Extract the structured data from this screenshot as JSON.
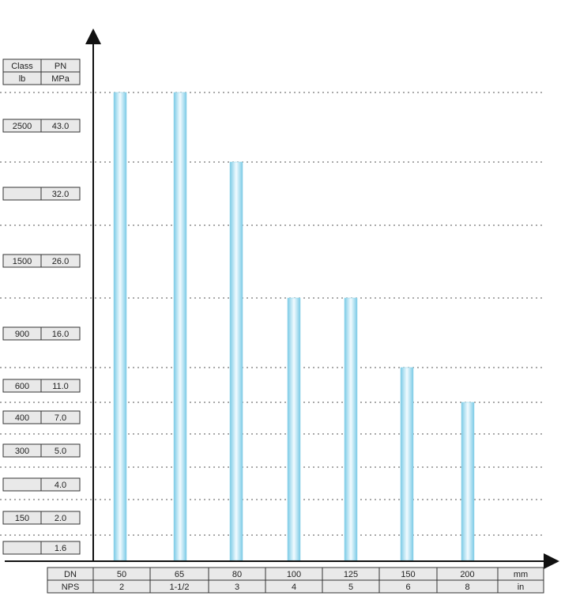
{
  "chart_data": {
    "type": "bar",
    "pressure_table": {
      "header": {
        "class_label": "Class",
        "pn_label": "PN",
        "class_unit": "lb",
        "pn_unit": "MPa"
      },
      "levels": [
        {
          "class": "2500",
          "pn": "43.0"
        },
        {
          "class": "",
          "pn": "32.0"
        },
        {
          "class": "1500",
          "pn": "26.0"
        },
        {
          "class": "900",
          "pn": "16.0"
        },
        {
          "class": "600",
          "pn": "11.0"
        },
        {
          "class": "400",
          "pn": "7.0"
        },
        {
          "class": "300",
          "pn": "5.0"
        },
        {
          "class": "",
          "pn": "4.0"
        },
        {
          "class": "150",
          "pn": "2.0"
        },
        {
          "class": "",
          "pn": "1.6"
        }
      ]
    },
    "size_table": {
      "dn_label": "DN",
      "nps_label": "NPS",
      "dn_unit": "mm",
      "nps_unit": "in",
      "dn": [
        "50",
        "65",
        "80",
        "100",
        "125",
        "150",
        "200"
      ],
      "nps": [
        "2",
        "1-1/2",
        "3",
        "4",
        "5",
        "6",
        "8"
      ]
    },
    "series": [
      {
        "values": [
          "43.0",
          "43.0",
          "32.0",
          "16.0",
          "16.0",
          "11.0",
          "7.0"
        ]
      }
    ],
    "grid": true,
    "bar_color": "#8fd3ea"
  }
}
